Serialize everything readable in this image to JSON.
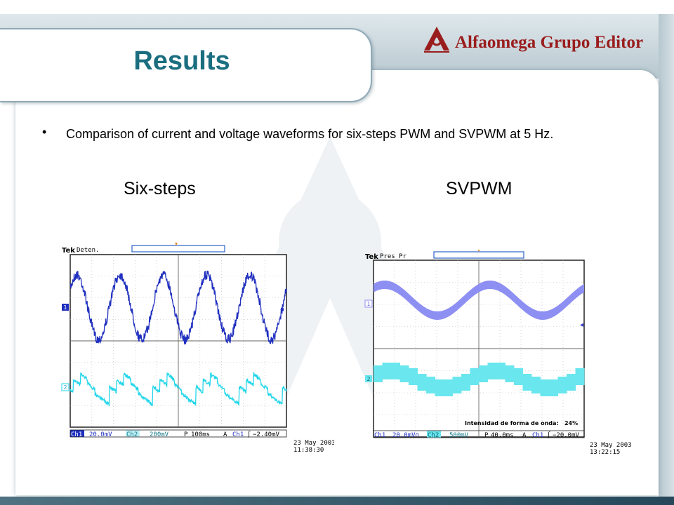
{
  "slide": {
    "title": "Results",
    "logo_text": "Alfaomega Grupo Editor",
    "bullet": "Comparison of current and voltage waveforms for six-steps PWM and SVPWM at 5 Hz.",
    "labels": {
      "left": "Six-steps",
      "right": "SVPWM"
    }
  },
  "colors": {
    "title": "#1a6e80",
    "ch1_six": "#1f2fbf",
    "ch2_six": "#22d6ea",
    "ch1_sv": "#8d8ff2",
    "ch2_sv": "#69e6ee",
    "logo": "#9a1d1d"
  },
  "scopes": [
    {
      "id": "six",
      "brand": "Tek",
      "status": "Deten.",
      "ch1_marker": "1",
      "ch2_marker": "2",
      "readout": [
        "Ch1",
        "20.0mV",
        "Ch2",
        "200mV",
        "P",
        "100ms",
        "A",
        "Ch1",
        "∫",
        "−2.40mV"
      ],
      "date": "23 May 2003",
      "time": "11:38:30",
      "note": ""
    },
    {
      "id": "sv",
      "brand": "Tek",
      "status": "Pres Pr",
      "ch1_marker": "1",
      "ch2_marker": "2",
      "readout": [
        "Ch1",
        "20.0mV∩",
        "Ch2",
        "500mV",
        "P",
        "40.0ms",
        "A",
        "Ch1",
        "∫",
        "−20.0mV"
      ],
      "date": "23 May 2003",
      "time": "13:22:15",
      "note": "Intensidad de forma de onda:   24%"
    }
  ]
}
